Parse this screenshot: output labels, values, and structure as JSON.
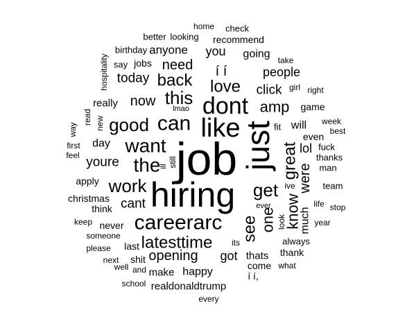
{
  "word_cloud": {
    "words": [
      {
        "text": "job"
      },
      {
        "text": "hiring"
      },
      {
        "text": "just"
      },
      {
        "text": "like"
      },
      {
        "text": "dont"
      },
      {
        "text": "careerarc"
      },
      {
        "text": "can"
      },
      {
        "text": "good"
      },
      {
        "text": "want"
      },
      {
        "text": "the"
      },
      {
        "text": "work"
      },
      {
        "text": "get"
      },
      {
        "text": "latesttime"
      },
      {
        "text": "see"
      },
      {
        "text": "this"
      },
      {
        "text": "love"
      },
      {
        "text": "back"
      },
      {
        "text": "great"
      },
      {
        "text": "amp"
      },
      {
        "text": "one"
      },
      {
        "text": "know"
      },
      {
        "text": "opening"
      },
      {
        "text": "were"
      },
      {
        "text": "need"
      },
      {
        "text": "now"
      },
      {
        "text": "youre"
      },
      {
        "text": "cant"
      },
      {
        "text": "today"
      },
      {
        "text": "click"
      },
      {
        "text": "people"
      },
      {
        "text": "anyone"
      },
      {
        "text": "you"
      },
      {
        "text": "going"
      },
      {
        "text": "lol"
      },
      {
        "text": "happy"
      },
      {
        "text": "got"
      },
      {
        "text": "much"
      },
      {
        "text": "í í"
      },
      {
        "text": "really"
      },
      {
        "text": "day"
      },
      {
        "text": "will"
      },
      {
        "text": "thats"
      },
      {
        "text": "realdonaldtrump"
      },
      {
        "text": "make"
      },
      {
        "text": "christmas"
      },
      {
        "text": "apply"
      },
      {
        "text": "think"
      },
      {
        "text": "never"
      },
      {
        "text": "last"
      },
      {
        "text": "shit"
      },
      {
        "text": "come"
      },
      {
        "text": "thank"
      },
      {
        "text": "even"
      },
      {
        "text": "jobs"
      },
      {
        "text": "recommend"
      },
      {
        "text": "fit"
      },
      {
        "text": "í í,"
      },
      {
        "text": "game"
      },
      {
        "text": "fuck"
      },
      {
        "text": "thanks"
      },
      {
        "text": "man"
      },
      {
        "text": "team"
      },
      {
        "text": "always"
      },
      {
        "text": "looking"
      },
      {
        "text": "check"
      },
      {
        "text": "better"
      },
      {
        "text": "home"
      },
      {
        "text": "birthday"
      },
      {
        "text": "say"
      },
      {
        "text": "take"
      },
      {
        "text": "right"
      },
      {
        "text": "girl"
      },
      {
        "text": "week"
      },
      {
        "text": "best"
      },
      {
        "text": "life"
      },
      {
        "text": "stop"
      },
      {
        "text": "year"
      },
      {
        "text": "ive"
      },
      {
        "text": "ever"
      },
      {
        "text": "look"
      },
      {
        "text": "its"
      },
      {
        "text": "what"
      },
      {
        "text": "every"
      },
      {
        "text": "school"
      },
      {
        "text": "and"
      },
      {
        "text": "well"
      },
      {
        "text": "next"
      },
      {
        "text": "please"
      },
      {
        "text": "someone"
      },
      {
        "text": "keep"
      },
      {
        "text": "first"
      },
      {
        "text": "feel"
      },
      {
        "text": "way"
      },
      {
        "text": "read"
      },
      {
        "text": "new"
      },
      {
        "text": "lmao"
      },
      {
        "text": "still"
      },
      {
        "text": "ill"
      },
      {
        "text": "hospitality"
      }
    ]
  }
}
